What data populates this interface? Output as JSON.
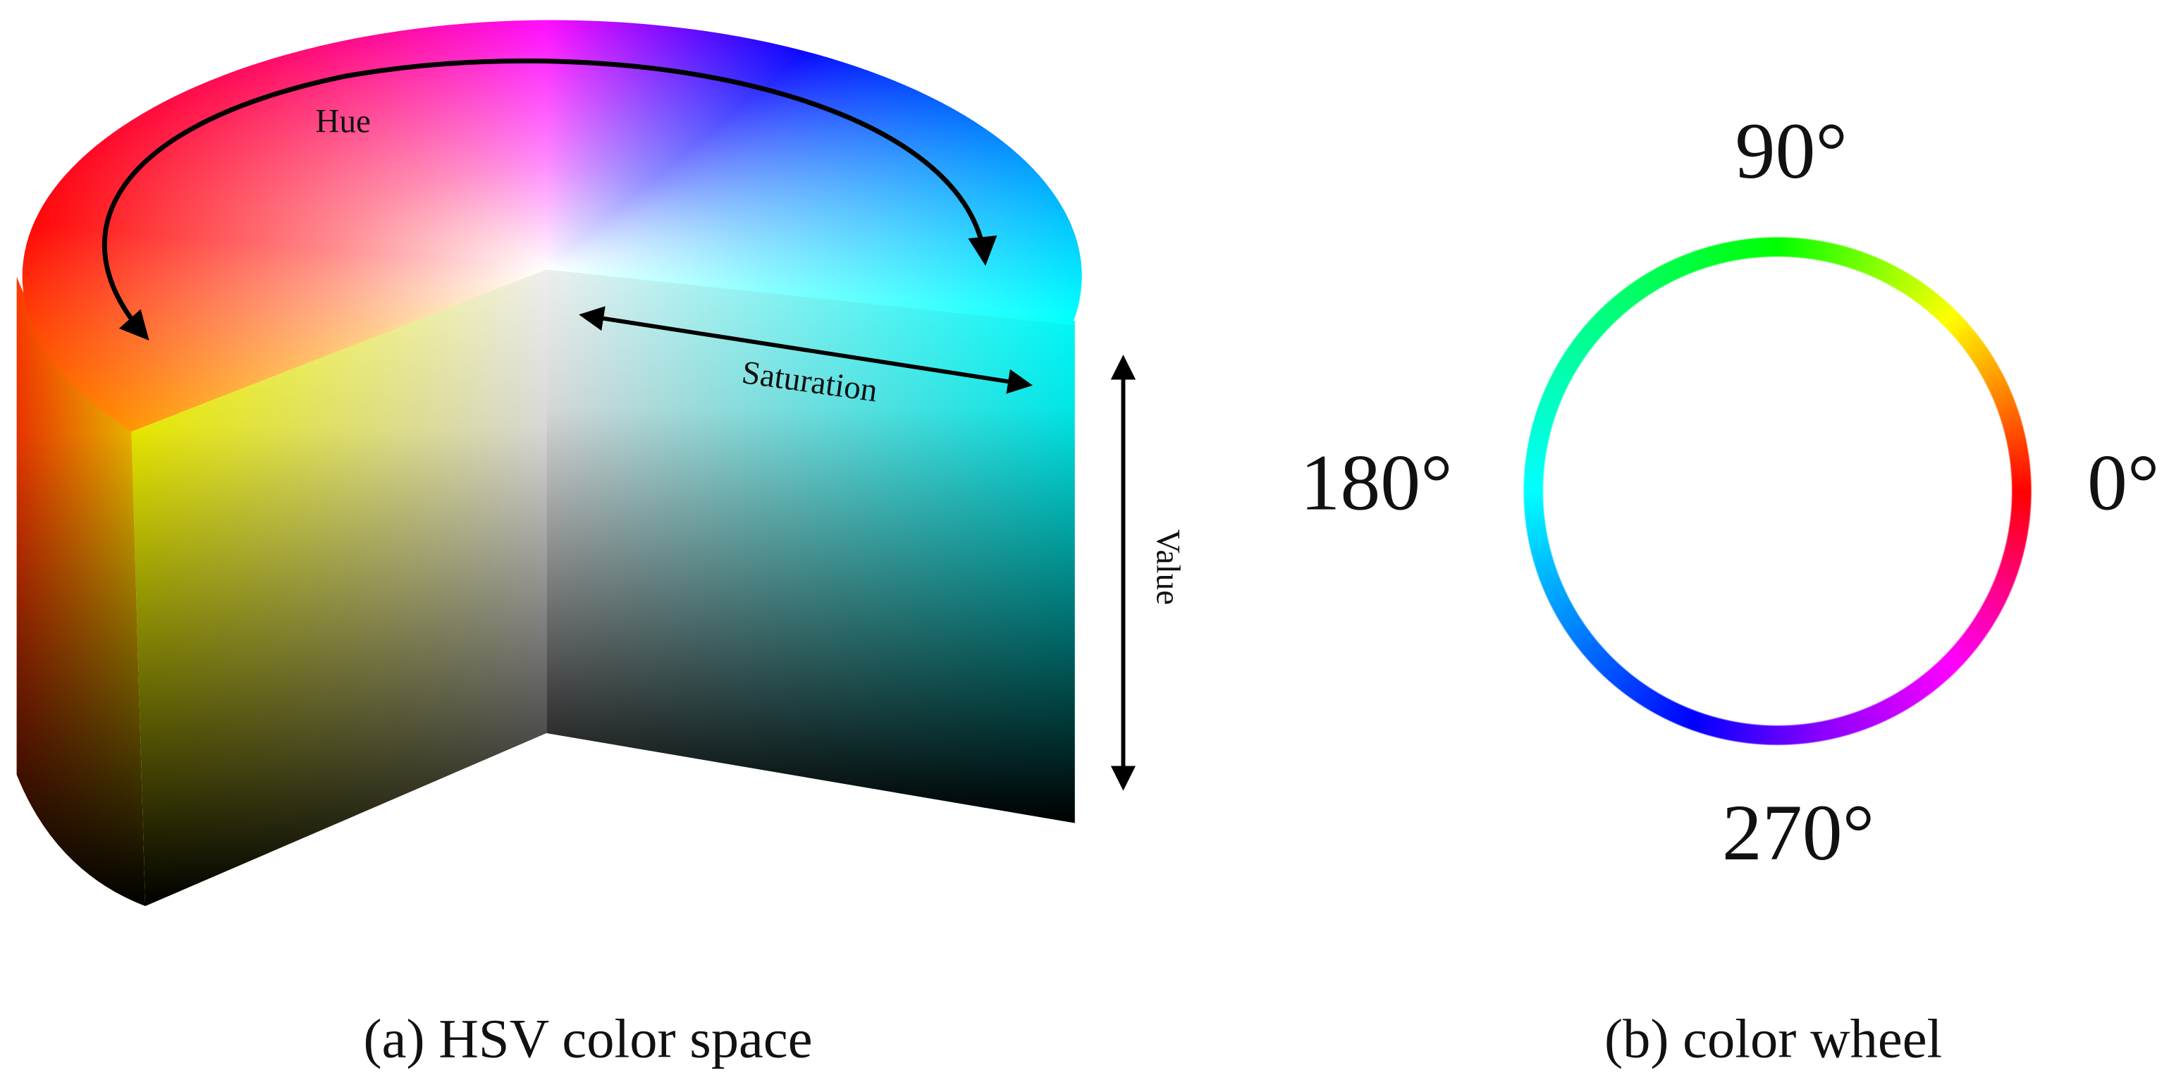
{
  "panels": [
    {
      "caption": "(a) HSV color space",
      "labels": {
        "hue": "Hue",
        "saturation": "Saturation",
        "value": "Value"
      }
    },
    {
      "caption": "(b) color wheel",
      "angles": {
        "top": "90°",
        "left": "180°",
        "right": "0°",
        "bottom": "270°"
      }
    }
  ]
}
